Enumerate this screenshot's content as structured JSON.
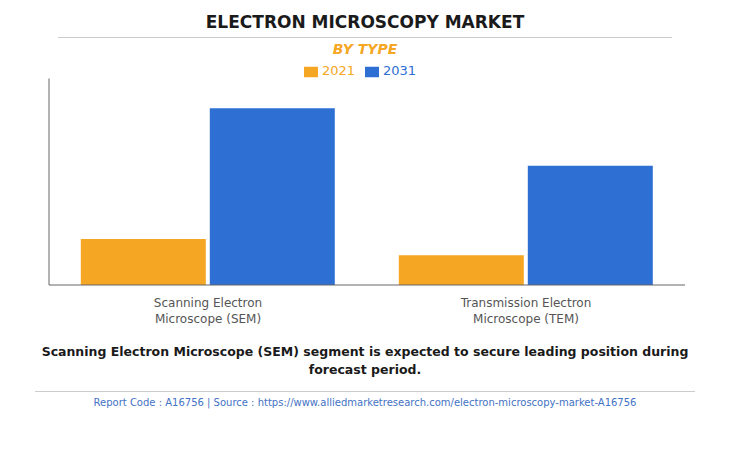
{
  "chart_data": {
    "type": "bar",
    "title": "ELECTRON MICROSCOPY MARKET",
    "subtitle": "BY TYPE",
    "categories": [
      "Scanning Electron\nMicroscope (SEM)",
      "Transmission Electron\nMicroscope (TEM)"
    ],
    "series": [
      {
        "name": "2021",
        "color": "#F5A623",
        "values": [
          1.0,
          0.65
        ]
      },
      {
        "name": "2031",
        "color": "#2E6FD4",
        "values": [
          3.85,
          2.6
        ]
      }
    ],
    "ylim": [
      0,
      4.5
    ],
    "tick_labels": "x",
    "legend": "top",
    "grid": false,
    "annotations": [
      "Scanning Electron Microscope (SEM) segment is expected to secure leading position during",
      "forecast period."
    ],
    "footer": "Report Code : A16756  |  Source : https://www.alliedmarketresearch.com/electron-microscopy-market-A16756"
  }
}
